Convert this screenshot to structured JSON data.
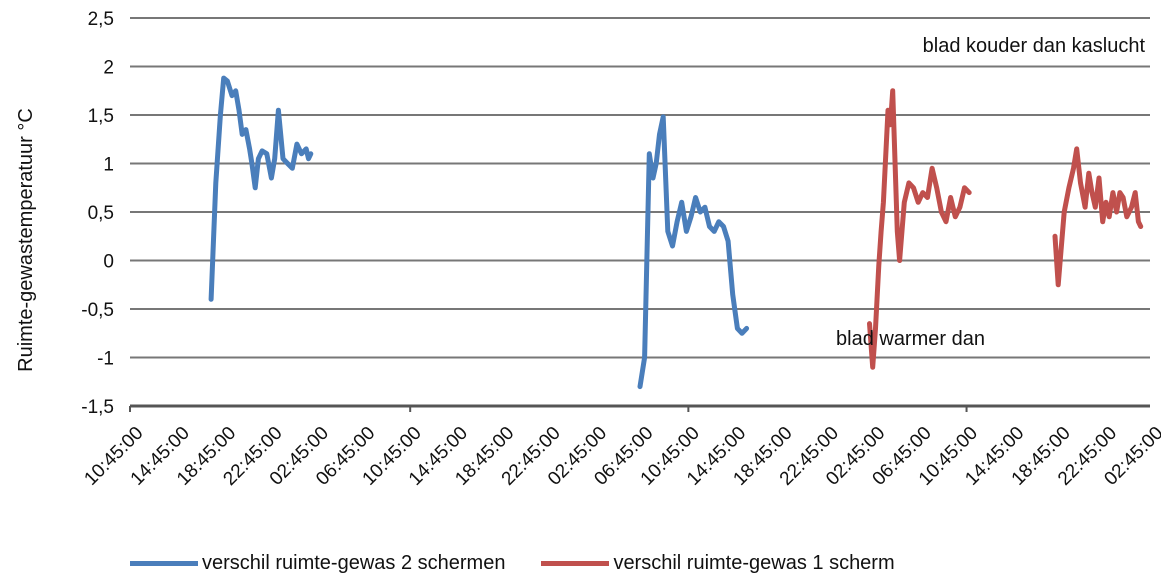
{
  "chart_data": {
    "type": "line",
    "title": "",
    "xlabel": "",
    "ylabel": "Ruimte-gewastemperatuur °C",
    "ylim": [
      -1.5,
      2.5
    ],
    "y_ticks": [
      "2,5",
      "2",
      "1,5",
      "1",
      "0,5",
      "0",
      "-0,5",
      "-1",
      "-1,5"
    ],
    "y_tick_values": [
      2.5,
      2,
      1.5,
      1,
      0.5,
      0,
      -0.5,
      -1,
      -1.5
    ],
    "x_tick_labels": [
      "10:45:00",
      "14:45:00",
      "18:45:00",
      "22:45:00",
      "02:45:00",
      "06:45:00",
      "10:45:00",
      "14:45:00",
      "18:45:00",
      "22:45:00",
      "02:45:00",
      "06:45:00",
      "10:45:00",
      "14:45:00",
      "18:45:00",
      "22:45:00",
      "02:45:00",
      "06:45:00",
      "10:45:00",
      "14:45:00",
      "18:45:00",
      "22:45:00",
      "02:45:00"
    ],
    "xlim": [
      0,
      22
    ],
    "grid": "horizontal",
    "legend_position": "bottom",
    "annotations": [
      {
        "text": "blad kouder dan kaslucht",
        "x": 21.5,
        "y": 2.22
      },
      {
        "text": "blad warmer dan",
        "x": 14.05,
        "y": -0.83
      }
    ],
    "series": [
      {
        "name": "verschil ruimte-gewas 2 schermen",
        "color": "#4a7ebb",
        "segments": [
          {
            "x": [
              1.75,
              1.85,
              1.95,
              2.02,
              2.1,
              2.2,
              2.28,
              2.35,
              2.42,
              2.5,
              2.58,
              2.63,
              2.7,
              2.77,
              2.85,
              2.95,
              3.05,
              3.12,
              3.2,
              3.3,
              3.4,
              3.5,
              3.6,
              3.7,
              3.8,
              3.85,
              3.9
            ],
            "y": [
              -0.4,
              0.8,
              1.5,
              1.88,
              1.85,
              1.7,
              1.75,
              1.55,
              1.3,
              1.35,
              1.15,
              1.0,
              0.75,
              1.05,
              1.13,
              1.1,
              0.85,
              1.05,
              1.55,
              1.05,
              1.0,
              0.95,
              1.2,
              1.1,
              1.15,
              1.05,
              1.1
            ]
          },
          {
            "x": [
              11.0,
              11.1,
              11.2,
              11.28,
              11.35,
              11.42,
              11.5,
              11.6,
              11.7,
              11.8,
              11.9,
              12.0,
              12.1,
              12.2,
              12.3,
              12.4,
              12.5,
              12.6,
              12.7,
              12.8,
              12.9,
              13.0,
              13.1,
              13.2,
              13.3
            ],
            "y": [
              -1.3,
              -1.0,
              1.1,
              0.85,
              1.0,
              1.3,
              1.48,
              0.3,
              0.15,
              0.4,
              0.6,
              0.3,
              0.45,
              0.65,
              0.5,
              0.55,
              0.35,
              0.3,
              0.4,
              0.35,
              0.2,
              -0.35,
              -0.7,
              -0.75,
              -0.7
            ]
          }
        ]
      },
      {
        "name": "verschil ruimte-gewas 1 scherm",
        "color": "#c0504d",
        "segments": [
          {
            "x": [
              15.95,
              16.02,
              16.08,
              16.15,
              16.2,
              16.25,
              16.35,
              16.4,
              16.45,
              16.55,
              16.6,
              16.7,
              16.8,
              16.9,
              17.0,
              17.1,
              17.2,
              17.3,
              17.4,
              17.5,
              17.6,
              17.7,
              17.8,
              17.9,
              18.0,
              18.1
            ],
            "y": [
              -0.65,
              -1.1,
              -0.7,
              -0.05,
              0.3,
              0.6,
              1.55,
              1.4,
              1.75,
              0.3,
              0.0,
              0.6,
              0.8,
              0.75,
              0.6,
              0.7,
              0.65,
              0.95,
              0.75,
              0.5,
              0.4,
              0.65,
              0.45,
              0.55,
              0.75,
              0.7
            ]
          },
          {
            "x": [
              19.95,
              20.02,
              20.08,
              20.15,
              20.25,
              20.35,
              20.42,
              20.5,
              20.6,
              20.68,
              20.75,
              20.82,
              20.9,
              20.98,
              21.05,
              21.12,
              21.2,
              21.28,
              21.35,
              21.42,
              21.5,
              21.6,
              21.68,
              21.75,
              21.8
            ],
            "y": [
              0.25,
              -0.25,
              0.1,
              0.5,
              0.75,
              0.95,
              1.15,
              0.8,
              0.55,
              0.9,
              0.7,
              0.55,
              0.85,
              0.4,
              0.6,
              0.45,
              0.7,
              0.5,
              0.7,
              0.65,
              0.45,
              0.55,
              0.7,
              0.4,
              0.35
            ]
          }
        ]
      }
    ]
  }
}
